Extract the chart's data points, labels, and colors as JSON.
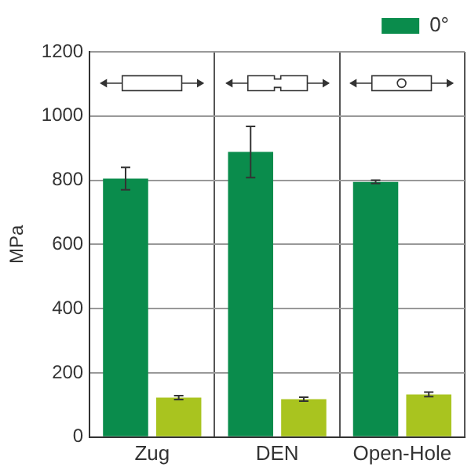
{
  "chart_data": {
    "type": "bar",
    "ylabel": "MPa",
    "categories": [
      "Zug",
      "DEN",
      "Open-Hole"
    ],
    "series": [
      {
        "name": "0°",
        "color": "#0a8c4c",
        "values": [
          805,
          888,
          795
        ],
        "errors": [
          35,
          80,
          5
        ]
      },
      {
        "color": "#a9c41f",
        "values": [
          123,
          118,
          133
        ],
        "errors": [
          6,
          6,
          7
        ]
      }
    ],
    "ylim": [
      0,
      1200
    ],
    "yticks": [
      0,
      200,
      400,
      600,
      800,
      1000,
      1200
    ],
    "grid": true,
    "legend": "top right"
  }
}
